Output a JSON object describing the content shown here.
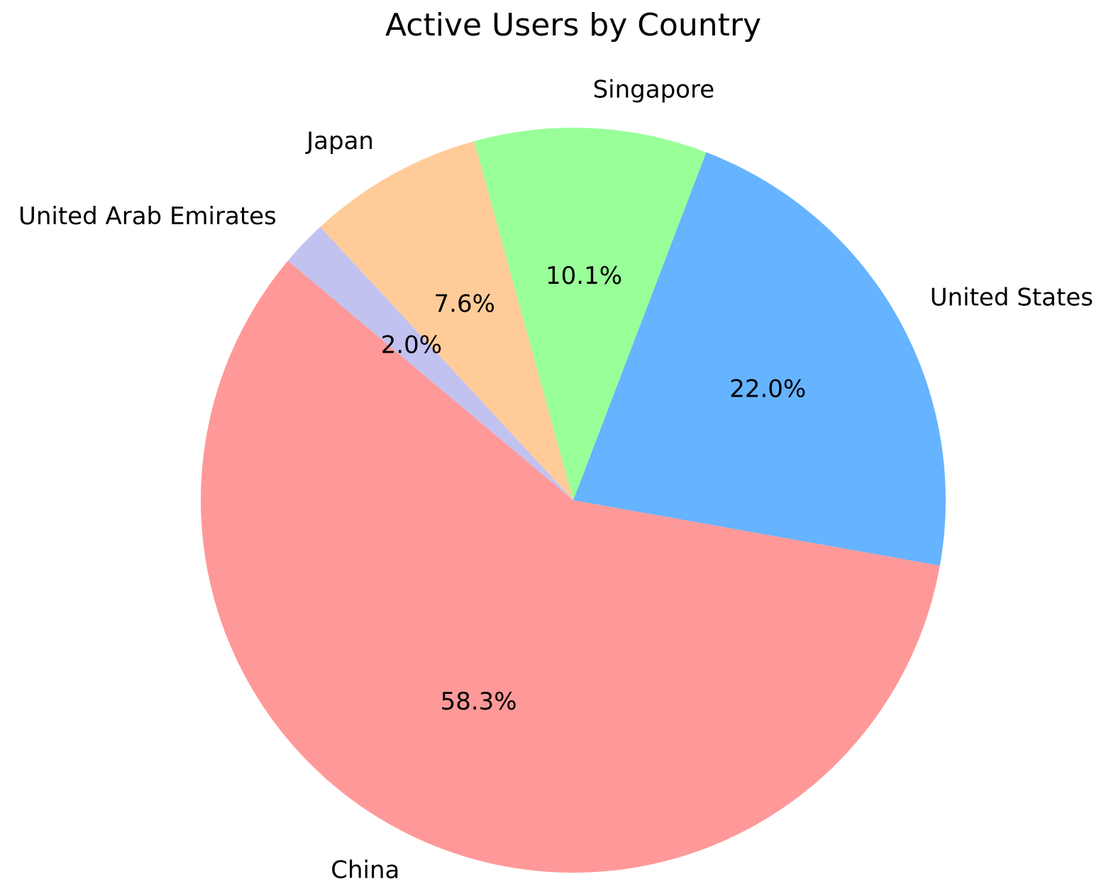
{
  "chart_data": {
    "type": "pie",
    "title": "Active Users by Country",
    "categories": [
      "China",
      "United States",
      "Singapore",
      "Japan",
      "United Arab Emirates"
    ],
    "values": [
      58.3,
      22.0,
      10.1,
      7.6,
      2.0
    ],
    "value_labels": [
      "58.3%",
      "22.0%",
      "10.1%",
      "7.6%",
      "2.0%"
    ],
    "colors": [
      "#ff9999",
      "#66b3ff",
      "#99ff99",
      "#ffcc99",
      "#c2c2f0"
    ]
  }
}
